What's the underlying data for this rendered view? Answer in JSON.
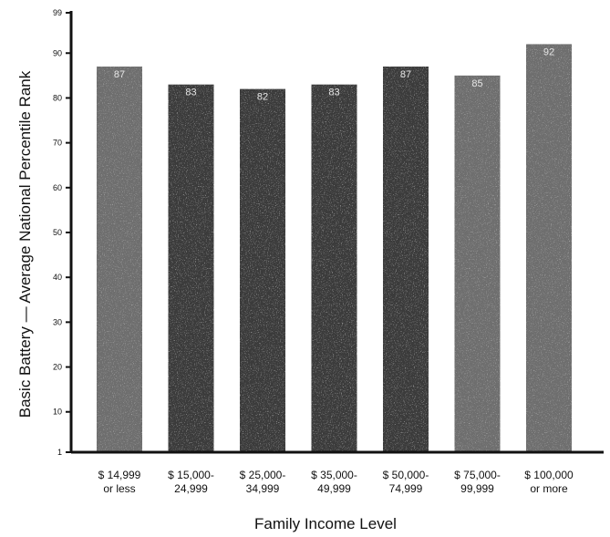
{
  "chart_data": {
    "type": "bar",
    "title": "",
    "xlabel": "Family Income Level",
    "ylabel": "Basic Battery — Average National Percentile Rank",
    "ylim": [
      1,
      99
    ],
    "yticks": [
      {
        "value": 1,
        "label": "1"
      },
      {
        "value": 10,
        "label": "10"
      },
      {
        "value": 20,
        "label": "20"
      },
      {
        "value": 30,
        "label": "30"
      },
      {
        "value": 40,
        "label": "40"
      },
      {
        "value": 50,
        "label": "50"
      },
      {
        "value": 60,
        "label": "60"
      },
      {
        "value": 70,
        "label": "70"
      },
      {
        "value": 80,
        "label": "80"
      },
      {
        "value": 90,
        "label": "90"
      },
      {
        "value": 99,
        "label": "99"
      }
    ],
    "categories": [
      [
        "$ 14,999",
        "or less"
      ],
      [
        "$ 15,000-",
        "24,999"
      ],
      [
        "$ 25,000-",
        "34,999"
      ],
      [
        "$ 35,000-",
        "49,999"
      ],
      [
        "$ 50,000-",
        "74,999"
      ],
      [
        "$ 75,000-",
        "99,999"
      ],
      [
        "$ 100,000",
        "or more"
      ]
    ],
    "values": [
      87,
      83,
      82,
      83,
      87,
      85,
      92
    ],
    "data_labels": [
      "87",
      "83",
      "82",
      "83",
      "87",
      "85",
      "92"
    ],
    "grid": false,
    "legend": "none",
    "colors": {
      "bar": "#3a3a3a",
      "bar_light": "#6e6e6e",
      "axis": "#111111",
      "background": "#ffffff"
    }
  }
}
